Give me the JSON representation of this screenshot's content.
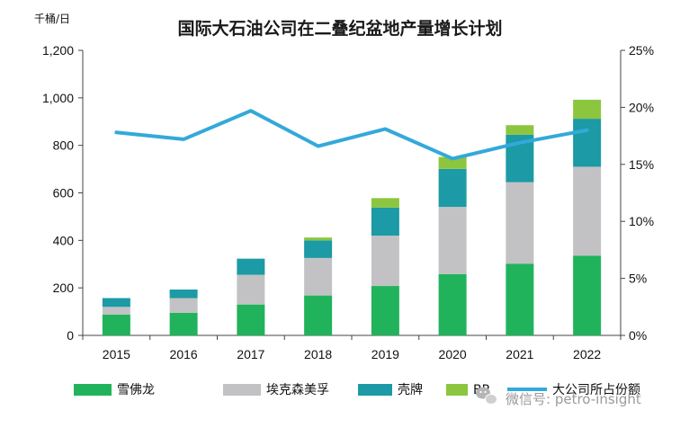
{
  "chart_data": {
    "type": "bar",
    "stacked": true,
    "title": "国际大石油公司在二叠纪盆地产量增长计划",
    "ylabel": "千桶/日",
    "ylim": [
      0,
      1200
    ],
    "y_ticks": [
      "0",
      "200",
      "400",
      "600",
      "800",
      "1,000",
      "1,200"
    ],
    "y2lim": [
      0,
      25
    ],
    "y2_ticks": [
      "0%",
      "5%",
      "10%",
      "15%",
      "20%",
      "25%"
    ],
    "categories": [
      "2015",
      "2016",
      "2017",
      "2018",
      "2019",
      "2020",
      "2021",
      "2022"
    ],
    "series": [
      {
        "name": "雪佛龙",
        "color": "#21b35b",
        "values": [
          88,
          95,
          130,
          168,
          208,
          258,
          302,
          335
        ]
      },
      {
        "name": "埃克森美孚",
        "color": "#c2c2c4",
        "values": [
          32,
          62,
          125,
          158,
          212,
          283,
          343,
          375
        ]
      },
      {
        "name": "壳牌",
        "color": "#1c9aa5",
        "values": [
          37,
          36,
          68,
          74,
          118,
          160,
          200,
          202
        ]
      },
      {
        "name": "BP",
        "color": "#8cc63f",
        "values": [
          0,
          0,
          0,
          12,
          40,
          50,
          40,
          80
        ]
      }
    ],
    "line_series": {
      "name": "大公司所占份额",
      "color": "#33a9d9",
      "axis": "right",
      "values": [
        17.8,
        17.2,
        19.7,
        16.6,
        18.1,
        15.5,
        16.9,
        18.0
      ]
    },
    "legend_position": "bottom"
  },
  "watermark": {
    "icon": "wechat-icon",
    "text": "微信号: petro-insight"
  }
}
